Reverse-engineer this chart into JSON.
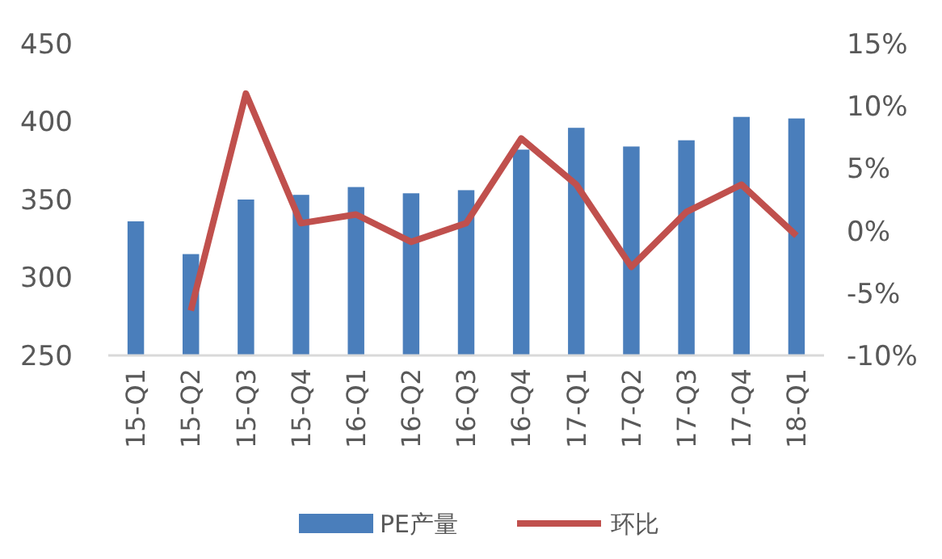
{
  "chart_data": {
    "type": "bar",
    "categories": [
      "15-Q1",
      "15-Q2",
      "15-Q3",
      "15-Q4",
      "16-Q1",
      "16-Q2",
      "16-Q3",
      "16-Q4",
      "17-Q1",
      "17-Q2",
      "17-Q3",
      "17-Q4",
      "18-Q1"
    ],
    "series": [
      {
        "name": "PE产量",
        "color": "#4a7ebb",
        "values": [
          336,
          315,
          350,
          353,
          358,
          354,
          356,
          382,
          396,
          384,
          388,
          403,
          402
        ]
      },
      {
        "name": "环比",
        "type": "line",
        "axis": "y2",
        "color": "#c0504d",
        "values": [
          null,
          -6.4,
          11,
          0.6,
          1.3,
          -0.9,
          0.6,
          7.4,
          3.7,
          -2.9,
          1.5,
          3.7,
          -0.4
        ]
      }
    ],
    "ylim": [
      250,
      450
    ],
    "yticks": [
      250,
      300,
      350,
      400,
      450
    ],
    "y2lim": [
      -10,
      15
    ],
    "y2ticks": [
      {
        "value": -10,
        "label": "-10%"
      },
      {
        "value": -5,
        "label": "-5%"
      },
      {
        "value": 0,
        "label": "0%"
      },
      {
        "value": 5,
        "label": "5%"
      },
      {
        "value": 10,
        "label": "10%"
      },
      {
        "value": 15,
        "label": "15%"
      }
    ],
    "grid": false,
    "legend": "bottom",
    "marker": "none",
    "line_style": "solid"
  }
}
